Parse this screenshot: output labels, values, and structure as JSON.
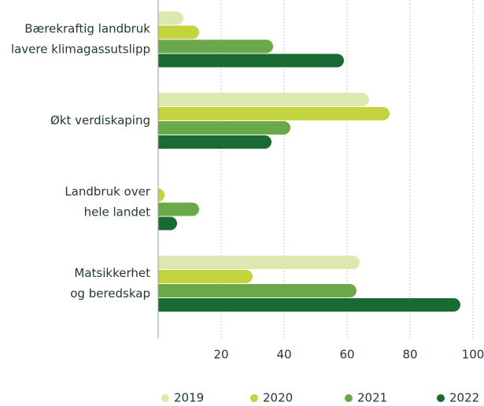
{
  "chart_data": {
    "type": "bar",
    "orientation": "horizontal",
    "categories": [
      [
        "Bærekraftig landbruk",
        "lavere klimagassutslipp"
      ],
      [
        "Økt verdiskaping"
      ],
      [
        "Landbruk over",
        "hele landet"
      ],
      [
        "Matsikkerhet",
        "og beredskap"
      ]
    ],
    "series": [
      {
        "name": "2019",
        "color": "#dce8b0",
        "values": [
          8,
          67,
          0,
          64
        ]
      },
      {
        "name": "2020",
        "color": "#c3d43e",
        "values": [
          13,
          73.5,
          2,
          30
        ]
      },
      {
        "name": "2021",
        "color": "#6aa84a",
        "values": [
          36.5,
          42,
          13,
          63
        ]
      },
      {
        "name": "2022",
        "color": "#1a6a34",
        "values": [
          59,
          36,
          6,
          96
        ]
      }
    ],
    "xlim": [
      0,
      100
    ],
    "xticks": [
      20,
      40,
      60,
      80,
      100
    ],
    "grid": true
  }
}
